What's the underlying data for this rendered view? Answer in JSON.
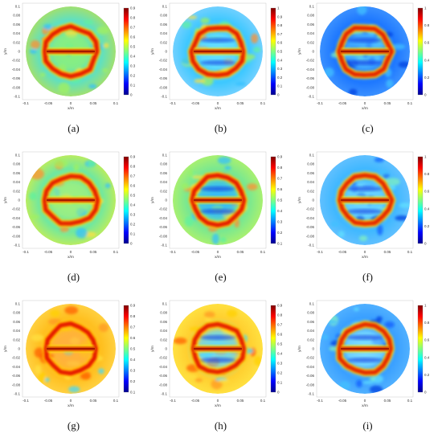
{
  "figure": {
    "panels": [
      {
        "label": "(a)",
        "cbar_ticks": [
          "0.9",
          "0.8",
          "0.7",
          "0.6",
          "0.5",
          "0.4",
          "0.3",
          "0.2",
          "0.1",
          "0"
        ],
        "variant": "a"
      },
      {
        "label": "(b)",
        "cbar_ticks": [
          "1",
          "0.9",
          "0.8",
          "0.7",
          "0.6",
          "0.5",
          "0.4",
          "0.3",
          "0.2",
          "0.1",
          "0"
        ],
        "variant": "b"
      },
      {
        "label": "(c)",
        "cbar_ticks": [
          "1",
          "0.8",
          "0.6",
          "0.4",
          "0.2",
          "0"
        ],
        "variant": "c"
      },
      {
        "label": "(d)",
        "cbar_ticks": [
          "0.9",
          "0.8",
          "0.7",
          "0.6",
          "0.5",
          "0.4",
          "0.3",
          "0.2",
          "0.1",
          "0"
        ],
        "variant": "d"
      },
      {
        "label": "(e)",
        "cbar_ticks": [
          "0.9",
          "0.8",
          "0.7",
          "0.6",
          "0.5",
          "0.4",
          "0.3",
          "0.2",
          "0.1"
        ],
        "variant": "e"
      },
      {
        "label": "(f)",
        "cbar_ticks": [
          "1",
          "0.8",
          "0.6",
          "0.4",
          "0.2",
          "0"
        ],
        "variant": "f"
      },
      {
        "label": "(g)",
        "cbar_ticks": [
          "0.9",
          "0.8",
          "0.7",
          "0.6",
          "0.5",
          "0.4",
          "0.3",
          "0.2",
          "0.1"
        ],
        "variant": "g"
      },
      {
        "label": "(h)",
        "cbar_ticks": [
          "0.9",
          "0.8",
          "0.7",
          "0.6",
          "0.5",
          "0.4",
          "0.3",
          "0.2",
          "0.1",
          "0"
        ],
        "variant": "h"
      },
      {
        "label": "(i)",
        "cbar_ticks": [
          "1",
          "0.8",
          "0.6",
          "0.4",
          "0.2",
          "0"
        ],
        "variant": "i"
      }
    ],
    "x_ticks": [
      "-0.1",
      "-0.05",
      "0",
      "0.05",
      "0.1"
    ],
    "y_ticks": [
      "0.1",
      "0.08",
      "0.06",
      "0.04",
      "0.02",
      "0",
      "-0.02",
      "-0.04",
      "-0.06",
      "-0.08",
      "-0.1"
    ],
    "xlabel": "x/m",
    "ylabel": "y/m",
    "colormap": [
      "#00008f",
      "#0000ff",
      "#0080ff",
      "#00ffff",
      "#80ff80",
      "#ffff00",
      "#ff8000",
      "#ff0000",
      "#800000"
    ]
  }
}
